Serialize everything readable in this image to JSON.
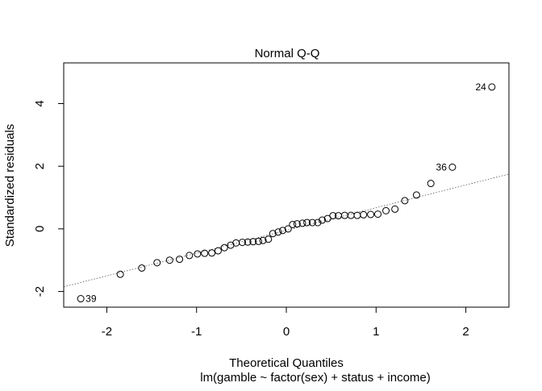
{
  "chart_data": {
    "type": "scatter",
    "title": "Normal Q-Q",
    "xlabel": "Theoretical Quantiles",
    "sublabel": "lm(gamble ~ factor(sex) + status + income)",
    "ylabel": "Standardized residuals",
    "xlim": [
      -2.48,
      2.48
    ],
    "ylim": [
      -2.5,
      5.3
    ],
    "x_ticks": [
      -2,
      -1,
      0,
      1,
      2
    ],
    "y_ticks": [
      -2,
      0,
      2,
      4
    ],
    "reference_line": {
      "x": [
        -2.48,
        2.48
      ],
      "y": [
        -1.85,
        1.75
      ]
    },
    "points": [
      {
        "x": -2.29,
        "y": -2.23,
        "label": "39"
      },
      {
        "x": -1.85,
        "y": -1.45
      },
      {
        "x": -1.61,
        "y": -1.25
      },
      {
        "x": -1.44,
        "y": -1.08
      },
      {
        "x": -1.3,
        "y": -1.0
      },
      {
        "x": -1.19,
        "y": -0.97
      },
      {
        "x": -1.08,
        "y": -0.85
      },
      {
        "x": -0.99,
        "y": -0.8
      },
      {
        "x": -0.91,
        "y": -0.78
      },
      {
        "x": -0.83,
        "y": -0.77
      },
      {
        "x": -0.76,
        "y": -0.7
      },
      {
        "x": -0.69,
        "y": -0.6
      },
      {
        "x": -0.62,
        "y": -0.52
      },
      {
        "x": -0.56,
        "y": -0.45
      },
      {
        "x": -0.49,
        "y": -0.43
      },
      {
        "x": -0.43,
        "y": -0.42
      },
      {
        "x": -0.37,
        "y": -0.41
      },
      {
        "x": -0.31,
        "y": -0.4
      },
      {
        "x": -0.26,
        "y": -0.37
      },
      {
        "x": -0.2,
        "y": -0.33
      },
      {
        "x": -0.15,
        "y": -0.15
      },
      {
        "x": -0.09,
        "y": -0.1
      },
      {
        "x": -0.04,
        "y": -0.05
      },
      {
        "x": 0.02,
        "y": 0.0
      },
      {
        "x": 0.07,
        "y": 0.14
      },
      {
        "x": 0.12,
        "y": 0.16
      },
      {
        "x": 0.18,
        "y": 0.18
      },
      {
        "x": 0.23,
        "y": 0.2
      },
      {
        "x": 0.29,
        "y": 0.2
      },
      {
        "x": 0.35,
        "y": 0.2
      },
      {
        "x": 0.4,
        "y": 0.28
      },
      {
        "x": 0.46,
        "y": 0.33
      },
      {
        "x": 0.52,
        "y": 0.42
      },
      {
        "x": 0.58,
        "y": 0.42
      },
      {
        "x": 0.65,
        "y": 0.43
      },
      {
        "x": 0.72,
        "y": 0.43
      },
      {
        "x": 0.79,
        "y": 0.43
      },
      {
        "x": 0.86,
        "y": 0.45
      },
      {
        "x": 0.94,
        "y": 0.46
      },
      {
        "x": 1.02,
        "y": 0.47
      },
      {
        "x": 1.11,
        "y": 0.58
      },
      {
        "x": 1.21,
        "y": 0.63
      },
      {
        "x": 1.32,
        "y": 0.9
      },
      {
        "x": 1.45,
        "y": 1.08
      },
      {
        "x": 1.61,
        "y": 1.45
      },
      {
        "x": 1.85,
        "y": 1.97,
        "label": "36"
      },
      {
        "x": 2.29,
        "y": 4.53,
        "label": "24"
      }
    ]
  }
}
